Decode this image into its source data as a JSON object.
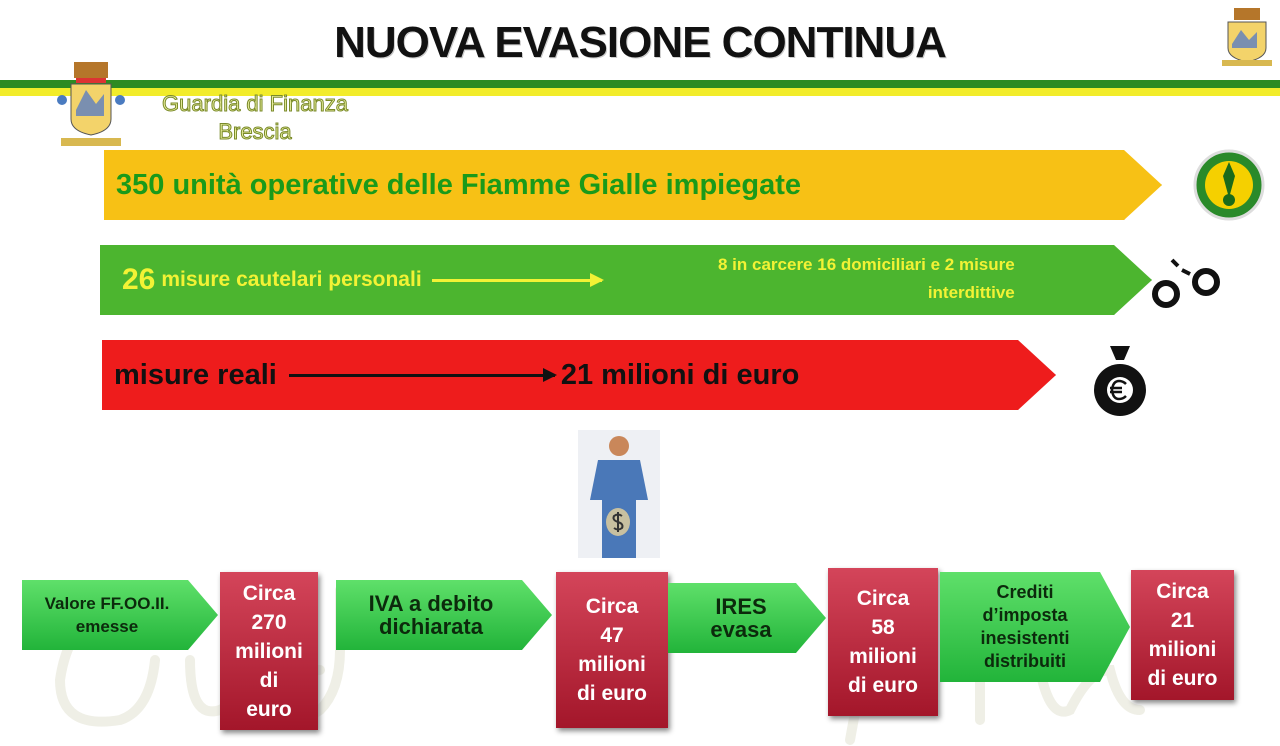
{
  "title": "NUOVA EVASIONE  CONTINUA",
  "organization": {
    "name": "Guardia di Finanza",
    "city": "Brescia"
  },
  "watermark": "Guardia di Finanza",
  "colors": {
    "yellow": "#f7c115",
    "green": "#4cb52f",
    "red": "#ee1c1c",
    "stripe_green": "#2e8b22",
    "stripe_yellow": "#f2ec2a",
    "box_red": "#b51f33"
  },
  "bars": [
    {
      "text": "350 unità operative delle Fiamme Gialle impiegate",
      "icon": "fiamme-gialle-emblem-icon"
    },
    {
      "number": "26",
      "text": "misure cautelari personali",
      "detail_line1": "8 in carcere 16 domiciliari e 2 misure",
      "detail_line2": "interdittive",
      "icon": "handcuffs-icon"
    },
    {
      "text": "misure reali",
      "result": "21 milioni di euro",
      "icon": "money-bag-icon"
    }
  ],
  "figure_icon": "businessman-with-money-bag-icon",
  "flow": [
    {
      "label": "Valore FF.OO.II. emesse",
      "value": [
        "Circa",
        "270",
        "milioni",
        "di",
        "euro"
      ]
    },
    {
      "label": "IVA a debito dichiarata",
      "value": [
        "Circa",
        "47",
        "milioni",
        "di euro"
      ]
    },
    {
      "label": "IRES evasa",
      "value": [
        "Circa",
        "58",
        "milioni",
        "di euro"
      ]
    },
    {
      "label": "Crediti d’imposta inesistenti distribuiti",
      "value": [
        "Circa",
        "21",
        "milioni",
        "di euro"
      ]
    }
  ]
}
